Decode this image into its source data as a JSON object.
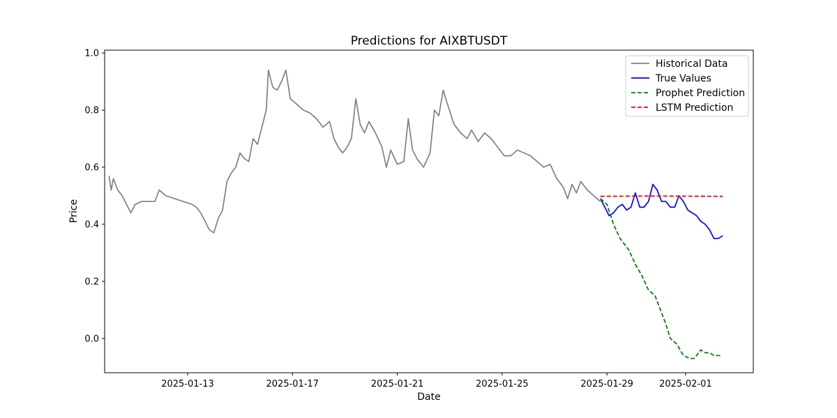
{
  "chart_data": {
    "type": "line",
    "title": "Predictions for AIXBTUSDT",
    "xlabel": "Date",
    "ylabel": "Price",
    "x_axis_type": "date",
    "xlim": [
      "2025-01-09T20:00",
      "2025-02-03T14:00"
    ],
    "ylim": [
      -0.12,
      1.01
    ],
    "x_ticks": [
      "2025-01-13",
      "2025-01-17",
      "2025-01-21",
      "2025-01-25",
      "2025-01-29",
      "2025-02-01"
    ],
    "y_ticks": [
      0.0,
      0.2,
      0.4,
      0.6,
      0.8,
      1.0
    ],
    "y_tick_labels": [
      "0.0",
      "0.2",
      "0.4",
      "0.6",
      "0.8",
      "1.0"
    ],
    "grid": false,
    "legend": {
      "position": "top-right",
      "entries": [
        {
          "label": "Historical Data",
          "color": "#808080",
          "style": "solid"
        },
        {
          "label": "True Values",
          "color": "#0000ff",
          "style": "solid"
        },
        {
          "label": "Prophet Prediction",
          "color": "#008000",
          "style": "dashed"
        },
        {
          "label": "LSTM Prediction",
          "color": "#ff0000",
          "style": "dashed"
        }
      ]
    },
    "series": [
      {
        "name": "Historical Data",
        "color": "#808080",
        "style": "solid",
        "points": [
          [
            "2025-01-10T00:00",
            0.57
          ],
          [
            "2025-01-10T02:00",
            0.52
          ],
          [
            "2025-01-10T04:00",
            0.56
          ],
          [
            "2025-01-10T08:00",
            0.52
          ],
          [
            "2025-01-10T12:00",
            0.5
          ],
          [
            "2025-01-10T16:00",
            0.47
          ],
          [
            "2025-01-10T20:00",
            0.44
          ],
          [
            "2025-01-11T00:00",
            0.47
          ],
          [
            "2025-01-11T06:00",
            0.48
          ],
          [
            "2025-01-11T12:00",
            0.48
          ],
          [
            "2025-01-11T18:00",
            0.48
          ],
          [
            "2025-01-11T22:00",
            0.52
          ],
          [
            "2025-01-12T04:00",
            0.5
          ],
          [
            "2025-01-12T12:00",
            0.49
          ],
          [
            "2025-01-12T20:00",
            0.48
          ],
          [
            "2025-01-13T04:00",
            0.47
          ],
          [
            "2025-01-13T08:00",
            0.46
          ],
          [
            "2025-01-13T12:00",
            0.44
          ],
          [
            "2025-01-13T16:00",
            0.41
          ],
          [
            "2025-01-13T20:00",
            0.38
          ],
          [
            "2025-01-14T00:00",
            0.37
          ],
          [
            "2025-01-14T04:00",
            0.42
          ],
          [
            "2025-01-14T08:00",
            0.45
          ],
          [
            "2025-01-14T12:00",
            0.55
          ],
          [
            "2025-01-14T16:00",
            0.58
          ],
          [
            "2025-01-14T20:00",
            0.6
          ],
          [
            "2025-01-15T00:00",
            0.65
          ],
          [
            "2025-01-15T04:00",
            0.63
          ],
          [
            "2025-01-15T08:00",
            0.62
          ],
          [
            "2025-01-15T12:00",
            0.7
          ],
          [
            "2025-01-15T16:00",
            0.68
          ],
          [
            "2025-01-15T20:00",
            0.74
          ],
          [
            "2025-01-16T00:00",
            0.8
          ],
          [
            "2025-01-16T02:00",
            0.94
          ],
          [
            "2025-01-16T06:00",
            0.88
          ],
          [
            "2025-01-16T10:00",
            0.87
          ],
          [
            "2025-01-16T14:00",
            0.9
          ],
          [
            "2025-01-16T18:00",
            0.94
          ],
          [
            "2025-01-16T22:00",
            0.84
          ],
          [
            "2025-01-17T04:00",
            0.82
          ],
          [
            "2025-01-17T10:00",
            0.8
          ],
          [
            "2025-01-17T16:00",
            0.79
          ],
          [
            "2025-01-17T22:00",
            0.77
          ],
          [
            "2025-01-18T04:00",
            0.74
          ],
          [
            "2025-01-18T10:00",
            0.76
          ],
          [
            "2025-01-18T14:00",
            0.7
          ],
          [
            "2025-01-18T18:00",
            0.67
          ],
          [
            "2025-01-18T22:00",
            0.65
          ],
          [
            "2025-01-19T02:00",
            0.67
          ],
          [
            "2025-01-19T06:00",
            0.7
          ],
          [
            "2025-01-19T10:00",
            0.84
          ],
          [
            "2025-01-19T14:00",
            0.75
          ],
          [
            "2025-01-19T18:00",
            0.72
          ],
          [
            "2025-01-19T22:00",
            0.76
          ],
          [
            "2025-01-20T04:00",
            0.72
          ],
          [
            "2025-01-20T10:00",
            0.67
          ],
          [
            "2025-01-20T14:00",
            0.6
          ],
          [
            "2025-01-20T18:00",
            0.66
          ],
          [
            "2025-01-21T00:00",
            0.61
          ],
          [
            "2025-01-21T06:00",
            0.62
          ],
          [
            "2025-01-21T10:00",
            0.77
          ],
          [
            "2025-01-21T14:00",
            0.66
          ],
          [
            "2025-01-21T18:00",
            0.63
          ],
          [
            "2025-01-22T00:00",
            0.6
          ],
          [
            "2025-01-22T06:00",
            0.65
          ],
          [
            "2025-01-22T10:00",
            0.8
          ],
          [
            "2025-01-22T14:00",
            0.78
          ],
          [
            "2025-01-22T18:00",
            0.87
          ],
          [
            "2025-01-22T22:00",
            0.82
          ],
          [
            "2025-01-23T04:00",
            0.75
          ],
          [
            "2025-01-23T10:00",
            0.72
          ],
          [
            "2025-01-23T16:00",
            0.7
          ],
          [
            "2025-01-23T20:00",
            0.73
          ],
          [
            "2025-01-24T02:00",
            0.69
          ],
          [
            "2025-01-24T08:00",
            0.72
          ],
          [
            "2025-01-24T14:00",
            0.7
          ],
          [
            "2025-01-24T20:00",
            0.67
          ],
          [
            "2025-01-25T02:00",
            0.64
          ],
          [
            "2025-01-25T08:00",
            0.64
          ],
          [
            "2025-01-25T14:00",
            0.66
          ],
          [
            "2025-01-25T20:00",
            0.65
          ],
          [
            "2025-01-26T02:00",
            0.64
          ],
          [
            "2025-01-26T08:00",
            0.62
          ],
          [
            "2025-01-26T14:00",
            0.6
          ],
          [
            "2025-01-26T20:00",
            0.61
          ],
          [
            "2025-01-27T02:00",
            0.56
          ],
          [
            "2025-01-27T08:00",
            0.53
          ],
          [
            "2025-01-27T12:00",
            0.49
          ],
          [
            "2025-01-27T16:00",
            0.54
          ],
          [
            "2025-01-27T20:00",
            0.51
          ],
          [
            "2025-01-28T00:00",
            0.55
          ],
          [
            "2025-01-28T06:00",
            0.52
          ],
          [
            "2025-01-28T12:00",
            0.5
          ],
          [
            "2025-01-28T18:00",
            0.48
          ]
        ]
      },
      {
        "name": "True Values",
        "color": "#0000ff",
        "style": "solid",
        "points": [
          [
            "2025-01-28T18:00",
            0.49
          ],
          [
            "2025-01-28T22:00",
            0.46
          ],
          [
            "2025-01-29T02:00",
            0.43
          ],
          [
            "2025-01-29T06:00",
            0.44
          ],
          [
            "2025-01-29T10:00",
            0.46
          ],
          [
            "2025-01-29T14:00",
            0.47
          ],
          [
            "2025-01-29T18:00",
            0.45
          ],
          [
            "2025-01-29T22:00",
            0.46
          ],
          [
            "2025-01-30T02:00",
            0.51
          ],
          [
            "2025-01-30T06:00",
            0.46
          ],
          [
            "2025-01-30T10:00",
            0.46
          ],
          [
            "2025-01-30T14:00",
            0.48
          ],
          [
            "2025-01-30T18:00",
            0.54
          ],
          [
            "2025-01-30T22:00",
            0.52
          ],
          [
            "2025-01-31T02:00",
            0.48
          ],
          [
            "2025-01-31T06:00",
            0.48
          ],
          [
            "2025-01-31T10:00",
            0.46
          ],
          [
            "2025-01-31T14:00",
            0.46
          ],
          [
            "2025-01-31T18:00",
            0.5
          ],
          [
            "2025-01-31T22:00",
            0.48
          ],
          [
            "2025-02-01T02:00",
            0.45
          ],
          [
            "2025-02-01T06:00",
            0.44
          ],
          [
            "2025-02-01T10:00",
            0.43
          ],
          [
            "2025-02-01T14:00",
            0.41
          ],
          [
            "2025-02-01T18:00",
            0.4
          ],
          [
            "2025-02-01T22:00",
            0.38
          ],
          [
            "2025-02-02T02:00",
            0.35
          ],
          [
            "2025-02-02T06:00",
            0.35
          ],
          [
            "2025-02-02T10:00",
            0.36
          ]
        ]
      },
      {
        "name": "Prophet Prediction",
        "color": "#008000",
        "style": "dashed",
        "points": [
          [
            "2025-01-28T18:00",
            0.49
          ],
          [
            "2025-01-29T00:00",
            0.47
          ],
          [
            "2025-01-29T06:00",
            0.4
          ],
          [
            "2025-01-29T12:00",
            0.35
          ],
          [
            "2025-01-29T16:00",
            0.33
          ],
          [
            "2025-01-29T20:00",
            0.31
          ],
          [
            "2025-01-30T02:00",
            0.26
          ],
          [
            "2025-01-30T08:00",
            0.22
          ],
          [
            "2025-01-30T14:00",
            0.17
          ],
          [
            "2025-01-30T20:00",
            0.15
          ],
          [
            "2025-01-31T02:00",
            0.09
          ],
          [
            "2025-01-31T06:00",
            0.05
          ],
          [
            "2025-01-31T10:00",
            0.0
          ],
          [
            "2025-01-31T16:00",
            -0.02
          ],
          [
            "2025-01-31T22:00",
            -0.06
          ],
          [
            "2025-02-01T04:00",
            -0.07
          ],
          [
            "2025-02-01T08:00",
            -0.07
          ],
          [
            "2025-02-01T14:00",
            -0.04
          ],
          [
            "2025-02-01T18:00",
            -0.05
          ],
          [
            "2025-02-01T22:00",
            -0.05
          ],
          [
            "2025-02-02T02:00",
            -0.06
          ],
          [
            "2025-02-02T08:00",
            -0.06
          ]
        ]
      },
      {
        "name": "LSTM Prediction",
        "color": "#ff0000",
        "style": "dashed",
        "points": [
          [
            "2025-01-28T18:00",
            0.498
          ],
          [
            "2025-01-30T12:00",
            0.499
          ],
          [
            "2025-02-02T10:00",
            0.498
          ]
        ]
      }
    ]
  }
}
